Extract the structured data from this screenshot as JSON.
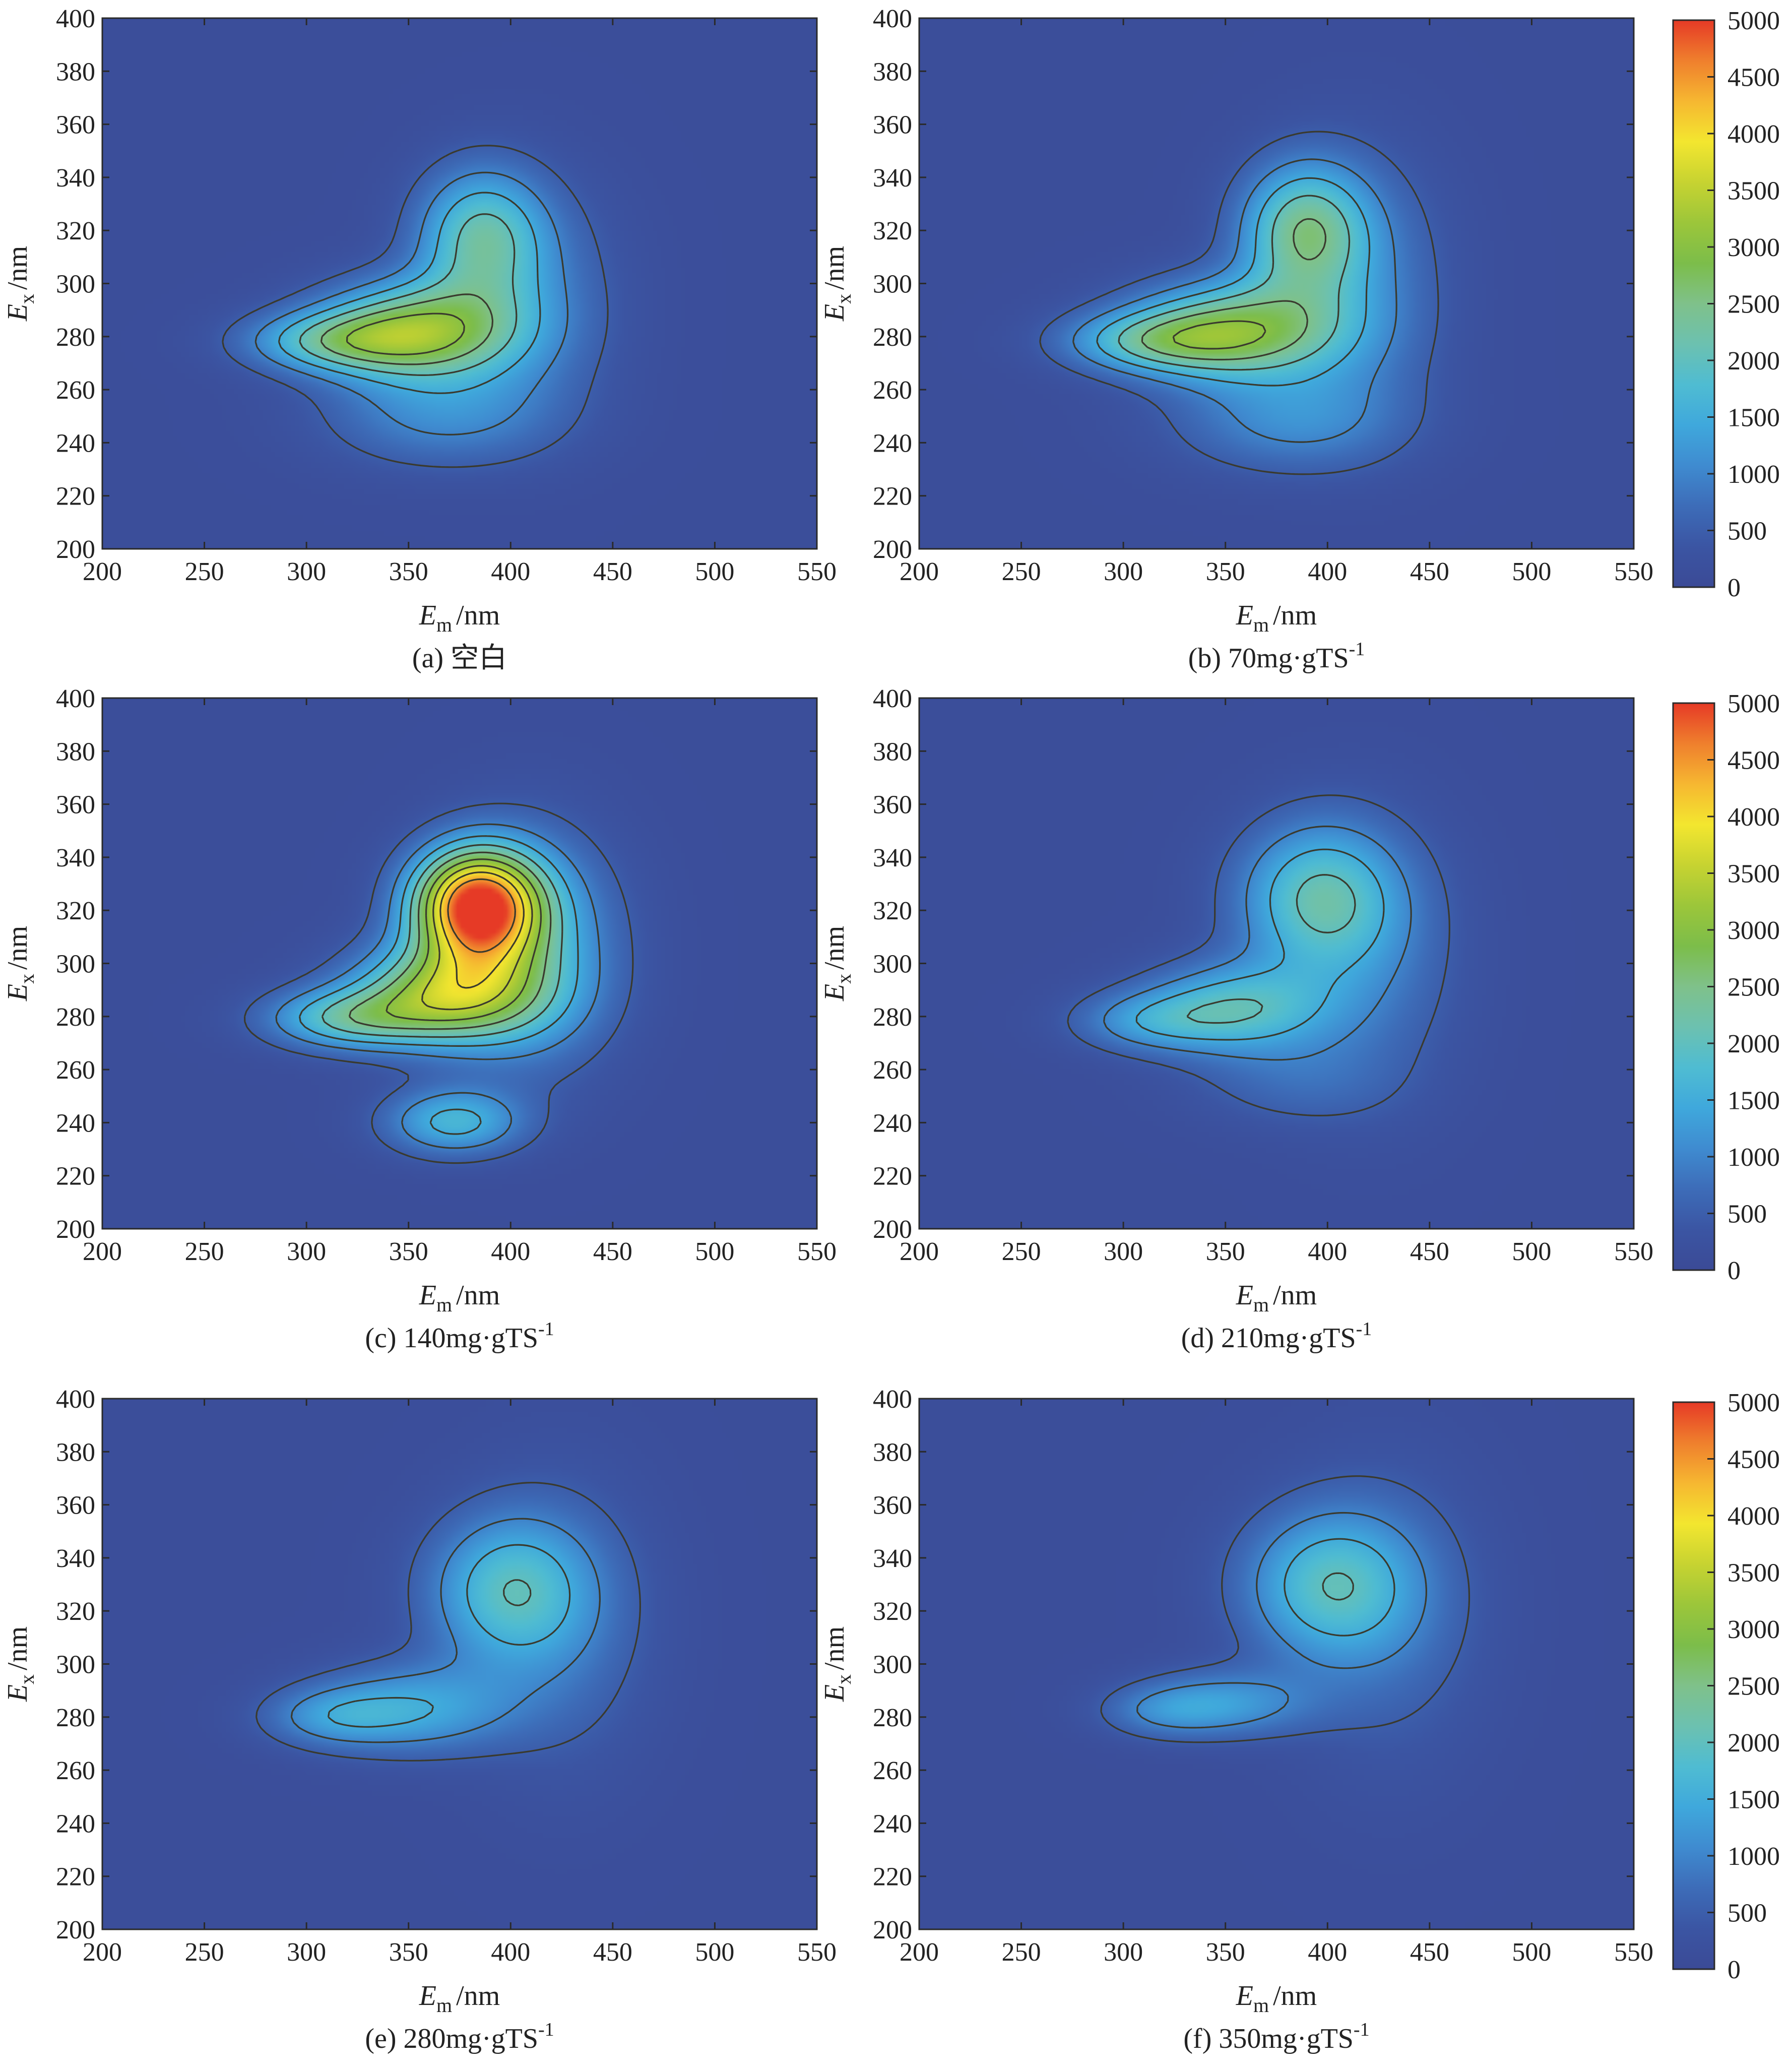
{
  "chart_data": {
    "type": "heatmap",
    "panels": [
      {
        "id": "a",
        "caption_prefix": "(a)",
        "caption_text": "空白",
        "caption_sup": "",
        "xlabel": "E",
        "xlabel_sub": "m",
        "xlabel_unit": "/nm",
        "ylabel": "E",
        "ylabel_sub": "x",
        "ylabel_unit": "/nm",
        "xlim": [
          200,
          550
        ],
        "ylim": [
          200,
          400
        ],
        "xticks": [
          "200",
          "250",
          "300",
          "350",
          "400",
          "450",
          "500",
          "550"
        ],
        "yticks": [
          "200",
          "220",
          "240",
          "260",
          "280",
          "300",
          "320",
          "340",
          "360",
          "380",
          "400"
        ],
        "peaks": [
          {
            "em": 355,
            "ex": 282,
            "intensity": 2650,
            "sx": 34,
            "sy": 13
          },
          {
            "em": 385,
            "ex": 318,
            "intensity": 1750,
            "sx": 22,
            "sy": 18
          },
          {
            "em": 310,
            "ex": 278,
            "intensity": 1400,
            "sx": 30,
            "sy": 8
          },
          {
            "em": 365,
            "ex": 250,
            "intensity": 900,
            "sx": 40,
            "sy": 14
          },
          {
            "em": 410,
            "ex": 295,
            "intensity": 700,
            "sx": 30,
            "sy": 30
          }
        ]
      },
      {
        "id": "b",
        "caption_prefix": "(b)",
        "caption_text": "70mg·gTS",
        "caption_sup": "-1",
        "xlabel": "E",
        "xlabel_sub": "m",
        "xlabel_unit": "/nm",
        "ylabel": "E",
        "ylabel_sub": "x",
        "ylabel_unit": "/nm",
        "xlim": [
          200,
          550
        ],
        "ylim": [
          200,
          400
        ],
        "xticks": [
          "200",
          "250",
          "300",
          "350",
          "400",
          "450",
          "500",
          "550"
        ],
        "yticks": [
          "200",
          "220",
          "240",
          "260",
          "280",
          "300",
          "320",
          "340",
          "360",
          "380",
          "400"
        ],
        "peaks": [
          {
            "em": 355,
            "ex": 282,
            "intensity": 2500,
            "sx": 36,
            "sy": 13
          },
          {
            "em": 388,
            "ex": 320,
            "intensity": 2000,
            "sx": 22,
            "sy": 18
          },
          {
            "em": 310,
            "ex": 278,
            "intensity": 1300,
            "sx": 30,
            "sy": 8
          },
          {
            "em": 380,
            "ex": 248,
            "intensity": 900,
            "sx": 40,
            "sy": 14
          },
          {
            "em": 415,
            "ex": 300,
            "intensity": 800,
            "sx": 30,
            "sy": 34
          }
        ]
      },
      {
        "id": "c",
        "caption_prefix": "(c)",
        "caption_text": "140mg·gTS",
        "caption_sup": "-1",
        "xlabel": "E",
        "xlabel_sub": "m",
        "xlabel_unit": "/nm",
        "ylabel": "E",
        "ylabel_sub": "x",
        "ylabel_unit": "/nm",
        "xlim": [
          200,
          550
        ],
        "ylim": [
          200,
          400
        ],
        "xticks": [
          "200",
          "250",
          "300",
          "350",
          "400",
          "450",
          "500",
          "550"
        ],
        "yticks": [
          "200",
          "220",
          "240",
          "260",
          "280",
          "300",
          "320",
          "340",
          "360",
          "380",
          "400"
        ],
        "peaks": [
          {
            "em": 383,
            "ex": 322,
            "intensity": 4600,
            "sx": 22,
            "sy": 15
          },
          {
            "em": 368,
            "ex": 288,
            "intensity": 2800,
            "sx": 32,
            "sy": 13
          },
          {
            "em": 318,
            "ex": 279,
            "intensity": 1600,
            "sx": 28,
            "sy": 8
          },
          {
            "em": 372,
            "ex": 240,
            "intensity": 1500,
            "sx": 24,
            "sy": 9
          },
          {
            "em": 410,
            "ex": 305,
            "intensity": 1400,
            "sx": 30,
            "sy": 30
          }
        ]
      },
      {
        "id": "d",
        "caption_prefix": "(d)",
        "caption_text": "210mg·gTS",
        "caption_sup": "-1",
        "xlabel": "E",
        "xlabel_sub": "m",
        "xlabel_unit": "/nm",
        "ylabel": "E",
        "ylabel_sub": "x",
        "ylabel_unit": "/nm",
        "xlim": [
          200,
          550
        ],
        "ylim": [
          200,
          400
        ],
        "xticks": [
          "200",
          "250",
          "300",
          "350",
          "400",
          "450",
          "500",
          "550"
        ],
        "yticks": [
          "200",
          "220",
          "240",
          "260",
          "280",
          "300",
          "320",
          "340",
          "360",
          "380",
          "400"
        ],
        "peaks": [
          {
            "em": 395,
            "ex": 325,
            "intensity": 1700,
            "sx": 28,
            "sy": 20
          },
          {
            "em": 355,
            "ex": 283,
            "intensity": 1650,
            "sx": 32,
            "sy": 12
          },
          {
            "em": 310,
            "ex": 278,
            "intensity": 900,
            "sx": 26,
            "sy": 8
          },
          {
            "em": 420,
            "ex": 300,
            "intensity": 650,
            "sx": 32,
            "sy": 36
          },
          {
            "em": 380,
            "ex": 255,
            "intensity": 450,
            "sx": 35,
            "sy": 12
          }
        ]
      },
      {
        "id": "e",
        "caption_prefix": "(e)",
        "caption_text": "280mg·gTS",
        "caption_sup": "-1",
        "xlabel": "E",
        "xlabel_sub": "m",
        "xlabel_unit": "/nm",
        "ylabel": "E",
        "ylabel_sub": "x",
        "ylabel_unit": "/nm",
        "xlim": [
          200,
          550
        ],
        "ylim": [
          200,
          400
        ],
        "xticks": [
          "200",
          "250",
          "300",
          "350",
          "400",
          "450",
          "500",
          "550"
        ],
        "yticks": [
          "200",
          "220",
          "240",
          "260",
          "280",
          "300",
          "320",
          "340",
          "360",
          "380",
          "400"
        ],
        "peaks": [
          {
            "em": 398,
            "ex": 328,
            "intensity": 1500,
            "sx": 28,
            "sy": 20
          },
          {
            "em": 352,
            "ex": 283,
            "intensity": 1250,
            "sx": 34,
            "sy": 12
          },
          {
            "em": 310,
            "ex": 280,
            "intensity": 800,
            "sx": 24,
            "sy": 8
          },
          {
            "em": 425,
            "ex": 315,
            "intensity": 600,
            "sx": 32,
            "sy": 38
          }
        ]
      },
      {
        "id": "f",
        "caption_prefix": "(f)",
        "caption_text": "350mg·gTS",
        "caption_sup": "-1",
        "xlabel": "E",
        "xlabel_sub": "m",
        "xlabel_unit": "/nm",
        "ylabel": "E",
        "ylabel_sub": "x",
        "ylabel_unit": "/nm",
        "xlim": [
          200,
          550
        ],
        "ylim": [
          200,
          400
        ],
        "xticks": [
          "200",
          "250",
          "300",
          "350",
          "400",
          "450",
          "500",
          "550"
        ],
        "yticks": [
          "200",
          "220",
          "240",
          "260",
          "280",
          "300",
          "320",
          "340",
          "360",
          "380",
          "400"
        ],
        "peaks": [
          {
            "em": 400,
            "ex": 330,
            "intensity": 1550,
            "sx": 30,
            "sy": 20
          },
          {
            "em": 350,
            "ex": 285,
            "intensity": 1050,
            "sx": 30,
            "sy": 9
          },
          {
            "em": 318,
            "ex": 282,
            "intensity": 600,
            "sx": 22,
            "sy": 7
          },
          {
            "em": 430,
            "ex": 318,
            "intensity": 550,
            "sx": 34,
            "sy": 40
          }
        ]
      }
    ],
    "colorbar": {
      "ticks": [
        "0",
        "500",
        "1000",
        "1500",
        "2000",
        "2500",
        "3000",
        "3500",
        "4000",
        "4500",
        "5000"
      ],
      "range": [
        0,
        5000
      ],
      "colors": [
        "#3b4a96",
        "#3b55a3",
        "#3d6cb8",
        "#3f8bd0",
        "#3fa8dc",
        "#4fbcd2",
        "#6cc1b0",
        "#7fc18a",
        "#7cbd4a",
        "#9cc63a",
        "#c7d331",
        "#f3e62f",
        "#f6b731",
        "#ef7f2d",
        "#e63a26"
      ]
    },
    "contour_levels": [
      500,
      1000,
      1500,
      2000,
      2500,
      3000,
      3500,
      4000,
      4500
    ]
  }
}
